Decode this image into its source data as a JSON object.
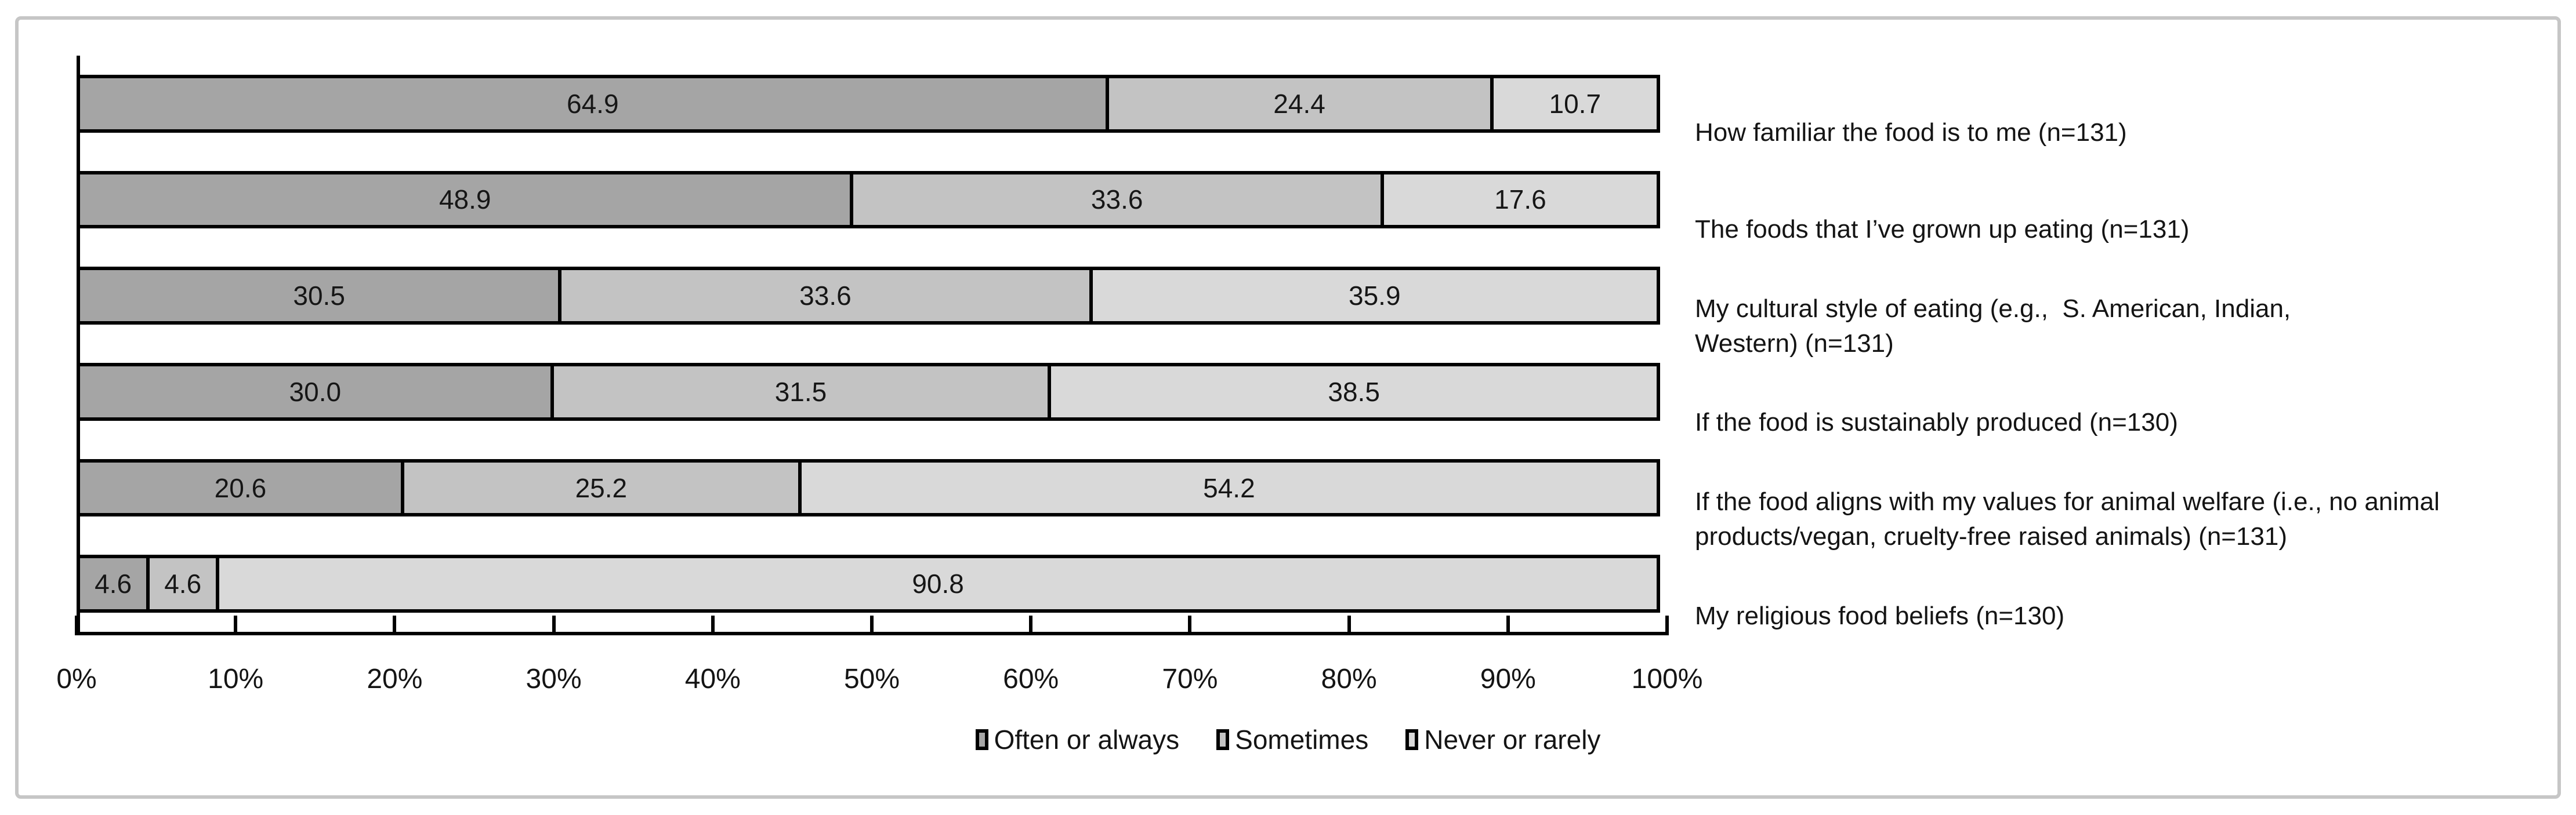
{
  "figure": {
    "background": "#ffffff",
    "card_border_color": "#c6c6c6",
    "axis_color": "#000000",
    "bar_border_color": "#000000",
    "text_color": "#141414"
  },
  "chart_data": {
    "type": "bar",
    "orientation": "horizontal",
    "stacked": true,
    "grid": false,
    "value_labels": "one decimal, centered in segment",
    "xlim": [
      0,
      100
    ],
    "x_ticks": [
      "0%",
      "10%",
      "20%",
      "30%",
      "40%",
      "50%",
      "60%",
      "70%",
      "80%",
      "90%",
      "100%"
    ],
    "legend_position": "bottom-center",
    "categories": [
      "How familiar the food is to me (n=131)",
      "The foods that I’ve grown up eating (n=131)",
      "My cultural style of eating (e.g.,  S. American, Indian,\nWestern) (n=131)",
      "If the food is sustainably produced (n=130)",
      "If the food aligns with my values for animal welfare (i.e., no animal\nproducts/vegan, cruelty-free raised animals) (n=131)",
      "My religious food beliefs (n=130)"
    ],
    "series": [
      {
        "name": "Often or always",
        "color": "#a5a5a5",
        "values": [
          64.9,
          48.9,
          30.5,
          30.0,
          20.6,
          4.6
        ]
      },
      {
        "name": "Sometimes",
        "color": "#c3c3c3",
        "values": [
          24.4,
          33.6,
          33.6,
          31.5,
          25.2,
          4.6
        ]
      },
      {
        "name": "Never or rarely",
        "color": "#d9d9d9",
        "values": [
          10.7,
          17.6,
          35.9,
          38.5,
          54.2,
          90.8
        ]
      }
    ]
  }
}
